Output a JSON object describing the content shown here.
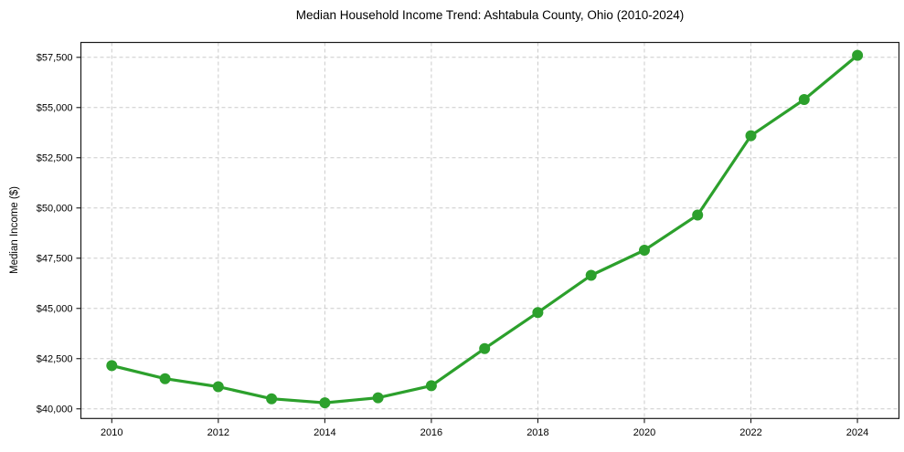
{
  "chart_data": {
    "type": "line",
    "title": "Median Household Income Trend: Ashtabula County, Ohio (2010-2024)",
    "xlabel": "",
    "ylabel": "Median Income ($)",
    "series": [
      {
        "name": "Median Household Income",
        "x": [
          2010,
          2011,
          2012,
          2013,
          2014,
          2015,
          2016,
          2017,
          2018,
          2019,
          2020,
          2021,
          2022,
          2023,
          2024
        ],
        "values": [
          42150,
          41500,
          41100,
          40500,
          40300,
          40550,
          41150,
          43000,
          44800,
          46650,
          47900,
          49650,
          53600,
          55400,
          57600
        ]
      }
    ],
    "x_ticks": [
      2010,
      2012,
      2014,
      2016,
      2018,
      2020,
      2022,
      2024
    ],
    "x_tick_labels": [
      "2010",
      "2012",
      "2014",
      "2016",
      "2018",
      "2020",
      "2022",
      "2024"
    ],
    "y_ticks": [
      40000,
      42500,
      45000,
      47500,
      50000,
      52500,
      55000,
      57500
    ],
    "y_tick_labels": [
      "$40,000",
      "$42,500",
      "$45,000",
      "$47,500",
      "$50,000",
      "$52,500",
      "$55,000",
      "$57,500"
    ],
    "xlim": [
      2009.42,
      2024.78
    ],
    "ylim": [
      39520,
      58240
    ],
    "grid": true,
    "grid_style": "dashed",
    "legend": "none",
    "colors": {
      "line": "#2ca02c",
      "marker": "#2ca02c",
      "gridline": "#cccccc",
      "spine": "#1a1a1a",
      "background": "#ffffff",
      "text": "#000000"
    },
    "marker_shape": "circle"
  }
}
